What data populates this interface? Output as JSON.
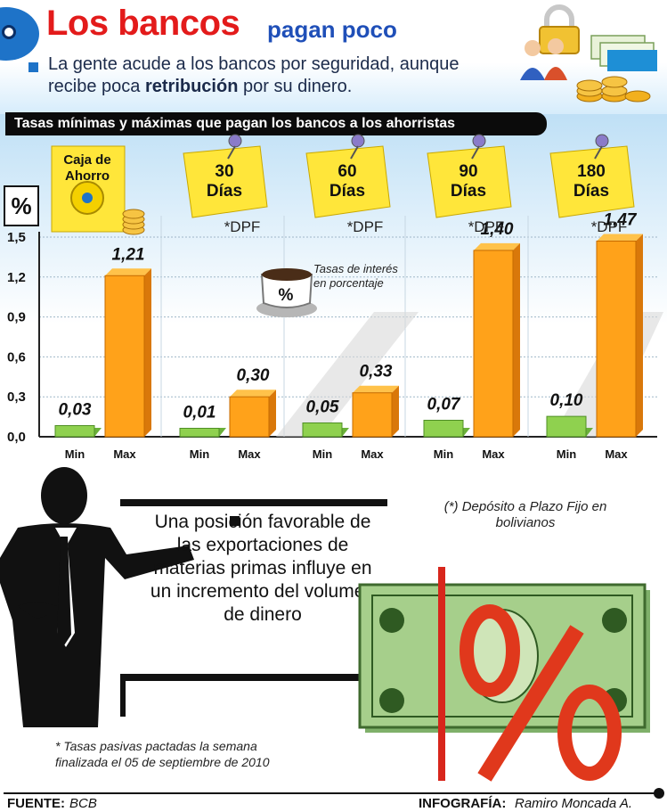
{
  "header": {
    "title": "Los bancos",
    "subtitle": "pagan poco",
    "intro_line1": "La gente acude a los bancos por seguridad, aunque",
    "intro_line2a": "recibe poca ",
    "intro_line2b": "retribución",
    "intro_line2c": " por su dinero."
  },
  "chart_data": {
    "type": "bar",
    "title": "Tasas mínimas y máximas que pagan los bancos a los ahorristas",
    "ylabel": "%",
    "ylim": [
      0,
      1.5
    ],
    "yticks": [
      "0,0",
      "0,3",
      "0,6",
      "0,9",
      "1,2",
      "1,5"
    ],
    "groups": [
      {
        "label_lines": [
          "Caja de",
          "Ahorro"
        ],
        "sublabel": "",
        "min": 0.03,
        "max": 1.21,
        "min_label": "0,03",
        "max_label": "1,21"
      },
      {
        "label_lines": [
          "30",
          "Días"
        ],
        "sublabel": "*DPF",
        "min": 0.01,
        "max": 0.3,
        "min_label": "0,01",
        "max_label": "0,30"
      },
      {
        "label_lines": [
          "60",
          "Días"
        ],
        "sublabel": "*DPF",
        "min": 0.05,
        "max": 0.33,
        "min_label": "0,05",
        "max_label": "0,33"
      },
      {
        "label_lines": [
          "90",
          "Días"
        ],
        "sublabel": "*DPF",
        "min": 0.07,
        "max": 1.4,
        "min_label": "0,07",
        "max_label": "1,40"
      },
      {
        "label_lines": [
          "180",
          "Días"
        ],
        "sublabel": "*DPF",
        "min": 0.1,
        "max": 1.47,
        "min_label": "0,10",
        "max_label": "1,47"
      }
    ],
    "series": [
      {
        "name": "Min",
        "color": "#8fd14f"
      },
      {
        "name": "Max",
        "color": "#ffa21a"
      }
    ],
    "legend_note": [
      "Tasas de interés",
      "en porcentaje"
    ],
    "cup_symbol": "%"
  },
  "notes": {
    "percent_box": "%",
    "presentation": "Una posición favorable de las exportaciones de materias primas influye en un incremento del volumen de dinero",
    "dpf_note": "(*) Depósito a Plazo Fijo en bolivianos",
    "week_note_line1": "* Tasas pasivas pactadas la semana",
    "week_note_line2": "finalizada el 05 de septiembre de 2010"
  },
  "footer": {
    "source_label": "FUENTE:",
    "source_value": "BCB",
    "credit_label": "INFOGRAFÍA:",
    "credit_value": "Ramiro Moncada A."
  },
  "colors": {
    "title_red": "#e31b1b",
    "subtitle_blue": "#1f4fb8",
    "bar_min": "#8fd14f",
    "bar_max": "#ffa21a",
    "note_yellow": "#ffe63a"
  },
  "icons": [
    "padlock-icon",
    "people-icon",
    "money-stack-icon",
    "coin-icon",
    "coffee-cup-icon",
    "pushpin-icon",
    "safe-icon",
    "dollar-bill-icon",
    "percent-sign-icon",
    "presenter-icon"
  ]
}
